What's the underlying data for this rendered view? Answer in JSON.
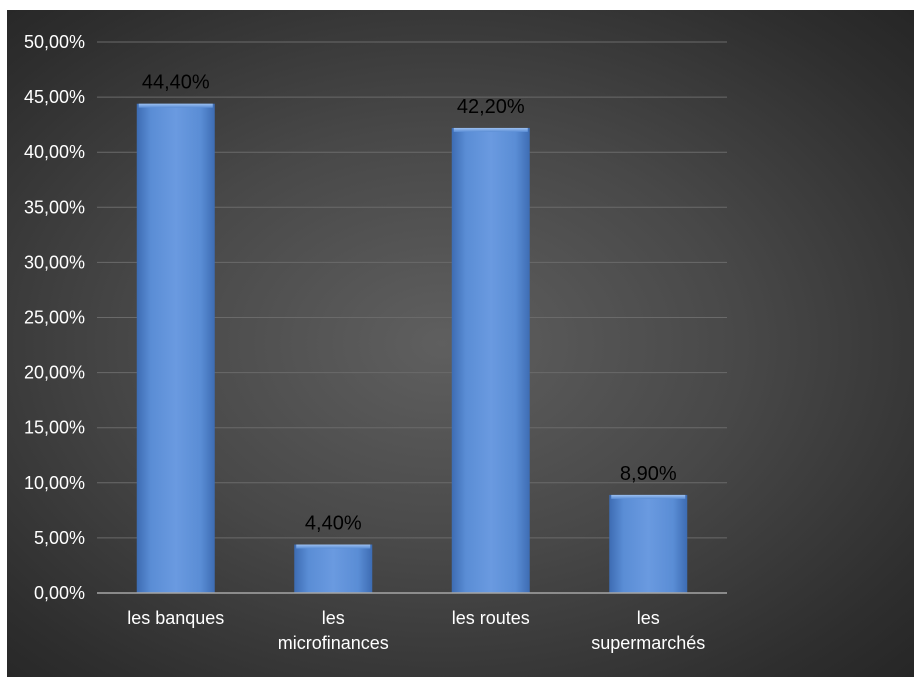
{
  "chart_data": {
    "type": "bar",
    "categories": [
      [
        "les banques"
      ],
      [
        "les",
        "microfinances"
      ],
      [
        "les routes"
      ],
      [
        "les",
        "supermarchés"
      ]
    ],
    "values": [
      44.4,
      4.4,
      42.2,
      8.9
    ],
    "data_labels": [
      "44,40%",
      "4,40%",
      "42,20%",
      "8,90%"
    ],
    "y_ticks": [
      0,
      5,
      10,
      15,
      20,
      25,
      30,
      35,
      40,
      45,
      50
    ],
    "y_tick_labels": [
      "0,00%",
      "5,00%",
      "10,00%",
      "15,00%",
      "20,00%",
      "25,00%",
      "30,00%",
      "35,00%",
      "40,00%",
      "45,00%",
      "50,00%"
    ],
    "ylim": [
      0,
      50
    ],
    "grid": true,
    "legend": "none",
    "title": "",
    "xlabel": "",
    "ylabel": "",
    "colors": {
      "bar": "#5b8ed6",
      "bar_dark": "#3f6fb8",
      "grid": "#6a6a6a",
      "axis": "#a6a6a6",
      "text": "#ffffff",
      "data_label": "#000000"
    }
  }
}
